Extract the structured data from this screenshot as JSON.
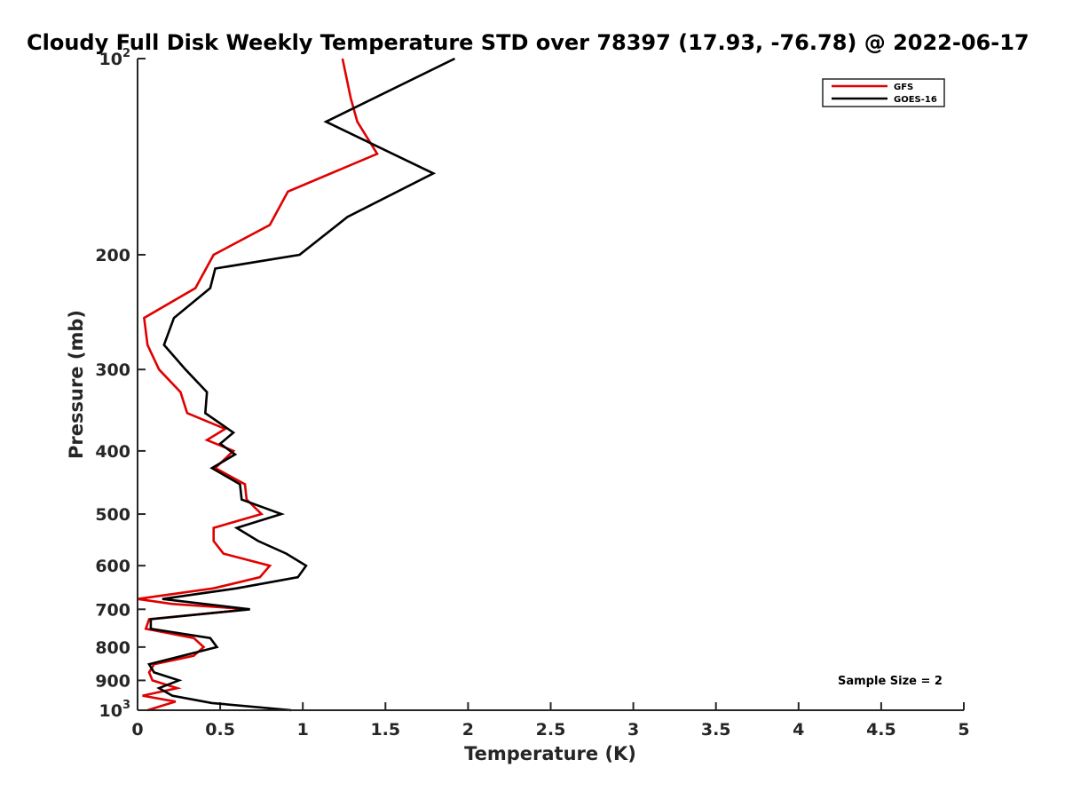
{
  "chart_data": {
    "type": "line",
    "title": "Cloudy Full Disk Weekly Temperature STD over 78397 (17.93, -76.78) @ 2022-06-17",
    "xlabel": "Temperature (K)",
    "ylabel": "Pressure (mb)",
    "xlim": [
      0,
      5
    ],
    "ylim": [
      100,
      1000
    ],
    "y_scale": "log",
    "y_reversed": true,
    "grid": false,
    "legend_position": "top-right",
    "x_ticks": [
      {
        "value": 0,
        "label": "0"
      },
      {
        "value": 0.5,
        "label": "0.5"
      },
      {
        "value": 1,
        "label": "1"
      },
      {
        "value": 1.5,
        "label": "1.5"
      },
      {
        "value": 2,
        "label": "2"
      },
      {
        "value": 2.5,
        "label": "2.5"
      },
      {
        "value": 3,
        "label": "3"
      },
      {
        "value": 3.5,
        "label": "3.5"
      },
      {
        "value": 4,
        "label": "4"
      },
      {
        "value": 4.5,
        "label": "4.5"
      },
      {
        "value": 5,
        "label": "5"
      }
    ],
    "y_ticks": [
      {
        "value": 100,
        "base": "10",
        "exp": "2"
      },
      {
        "value": 200,
        "label": "200"
      },
      {
        "value": 300,
        "label": "300"
      },
      {
        "value": 400,
        "label": "400"
      },
      {
        "value": 500,
        "label": "500"
      },
      {
        "value": 600,
        "label": "600"
      },
      {
        "value": 700,
        "label": "700"
      },
      {
        "value": 800,
        "label": "800"
      },
      {
        "value": 900,
        "label": "900"
      },
      {
        "value": 1000,
        "base": "10",
        "exp": "3"
      }
    ],
    "annotation": "Sample Size = 2",
    "series": [
      {
        "name": "GFS",
        "color": "#e00000",
        "points": [
          [
            1.24,
            100
          ],
          [
            1.29,
            115
          ],
          [
            1.33,
            125
          ],
          [
            1.45,
            140
          ],
          [
            0.91,
            160
          ],
          [
            0.8,
            180
          ],
          [
            0.46,
            200
          ],
          [
            0.35,
            225
          ],
          [
            0.04,
            250
          ],
          [
            0.06,
            275
          ],
          [
            0.13,
            300
          ],
          [
            0.26,
            325
          ],
          [
            0.3,
            350
          ],
          [
            0.53,
            370
          ],
          [
            0.42,
            385
          ],
          [
            0.58,
            400
          ],
          [
            0.47,
            425
          ],
          [
            0.65,
            450
          ],
          [
            0.66,
            475
          ],
          [
            0.75,
            500
          ],
          [
            0.46,
            525
          ],
          [
            0.46,
            550
          ],
          [
            0.52,
            575
          ],
          [
            0.8,
            600
          ],
          [
            0.74,
            625
          ],
          [
            0.46,
            650
          ],
          [
            0.0,
            675
          ],
          [
            0.21,
            687
          ],
          [
            0.68,
            700
          ],
          [
            0.07,
            725
          ],
          [
            0.05,
            750
          ],
          [
            0.34,
            775
          ],
          [
            0.4,
            800
          ],
          [
            0.34,
            825
          ],
          [
            0.1,
            850
          ],
          [
            0.07,
            875
          ],
          [
            0.09,
            900
          ],
          [
            0.24,
            925
          ],
          [
            0.03,
            950
          ],
          [
            0.23,
            970
          ],
          [
            0.06,
            1000
          ]
        ]
      },
      {
        "name": "GOES-16",
        "color": "#000000",
        "points": [
          [
            1.92,
            100
          ],
          [
            1.14,
            125
          ],
          [
            1.79,
            150
          ],
          [
            1.27,
            175
          ],
          [
            0.98,
            200
          ],
          [
            0.47,
            210
          ],
          [
            0.44,
            225
          ],
          [
            0.22,
            250
          ],
          [
            0.16,
            275
          ],
          [
            0.29,
            300
          ],
          [
            0.42,
            325
          ],
          [
            0.41,
            350
          ],
          [
            0.58,
            375
          ],
          [
            0.5,
            390
          ],
          [
            0.59,
            405
          ],
          [
            0.45,
            425
          ],
          [
            0.62,
            450
          ],
          [
            0.63,
            475
          ],
          [
            0.87,
            500
          ],
          [
            0.6,
            525
          ],
          [
            0.73,
            550
          ],
          [
            0.9,
            575
          ],
          [
            1.02,
            600
          ],
          [
            0.97,
            625
          ],
          [
            0.6,
            650
          ],
          [
            0.15,
            675
          ],
          [
            0.68,
            700
          ],
          [
            0.08,
            725
          ],
          [
            0.08,
            750
          ],
          [
            0.44,
            775
          ],
          [
            0.48,
            800
          ],
          [
            0.07,
            850
          ],
          [
            0.1,
            875
          ],
          [
            0.25,
            900
          ],
          [
            0.13,
            925
          ],
          [
            0.21,
            950
          ],
          [
            0.45,
            975
          ],
          [
            0.93,
            1000
          ]
        ]
      }
    ]
  }
}
